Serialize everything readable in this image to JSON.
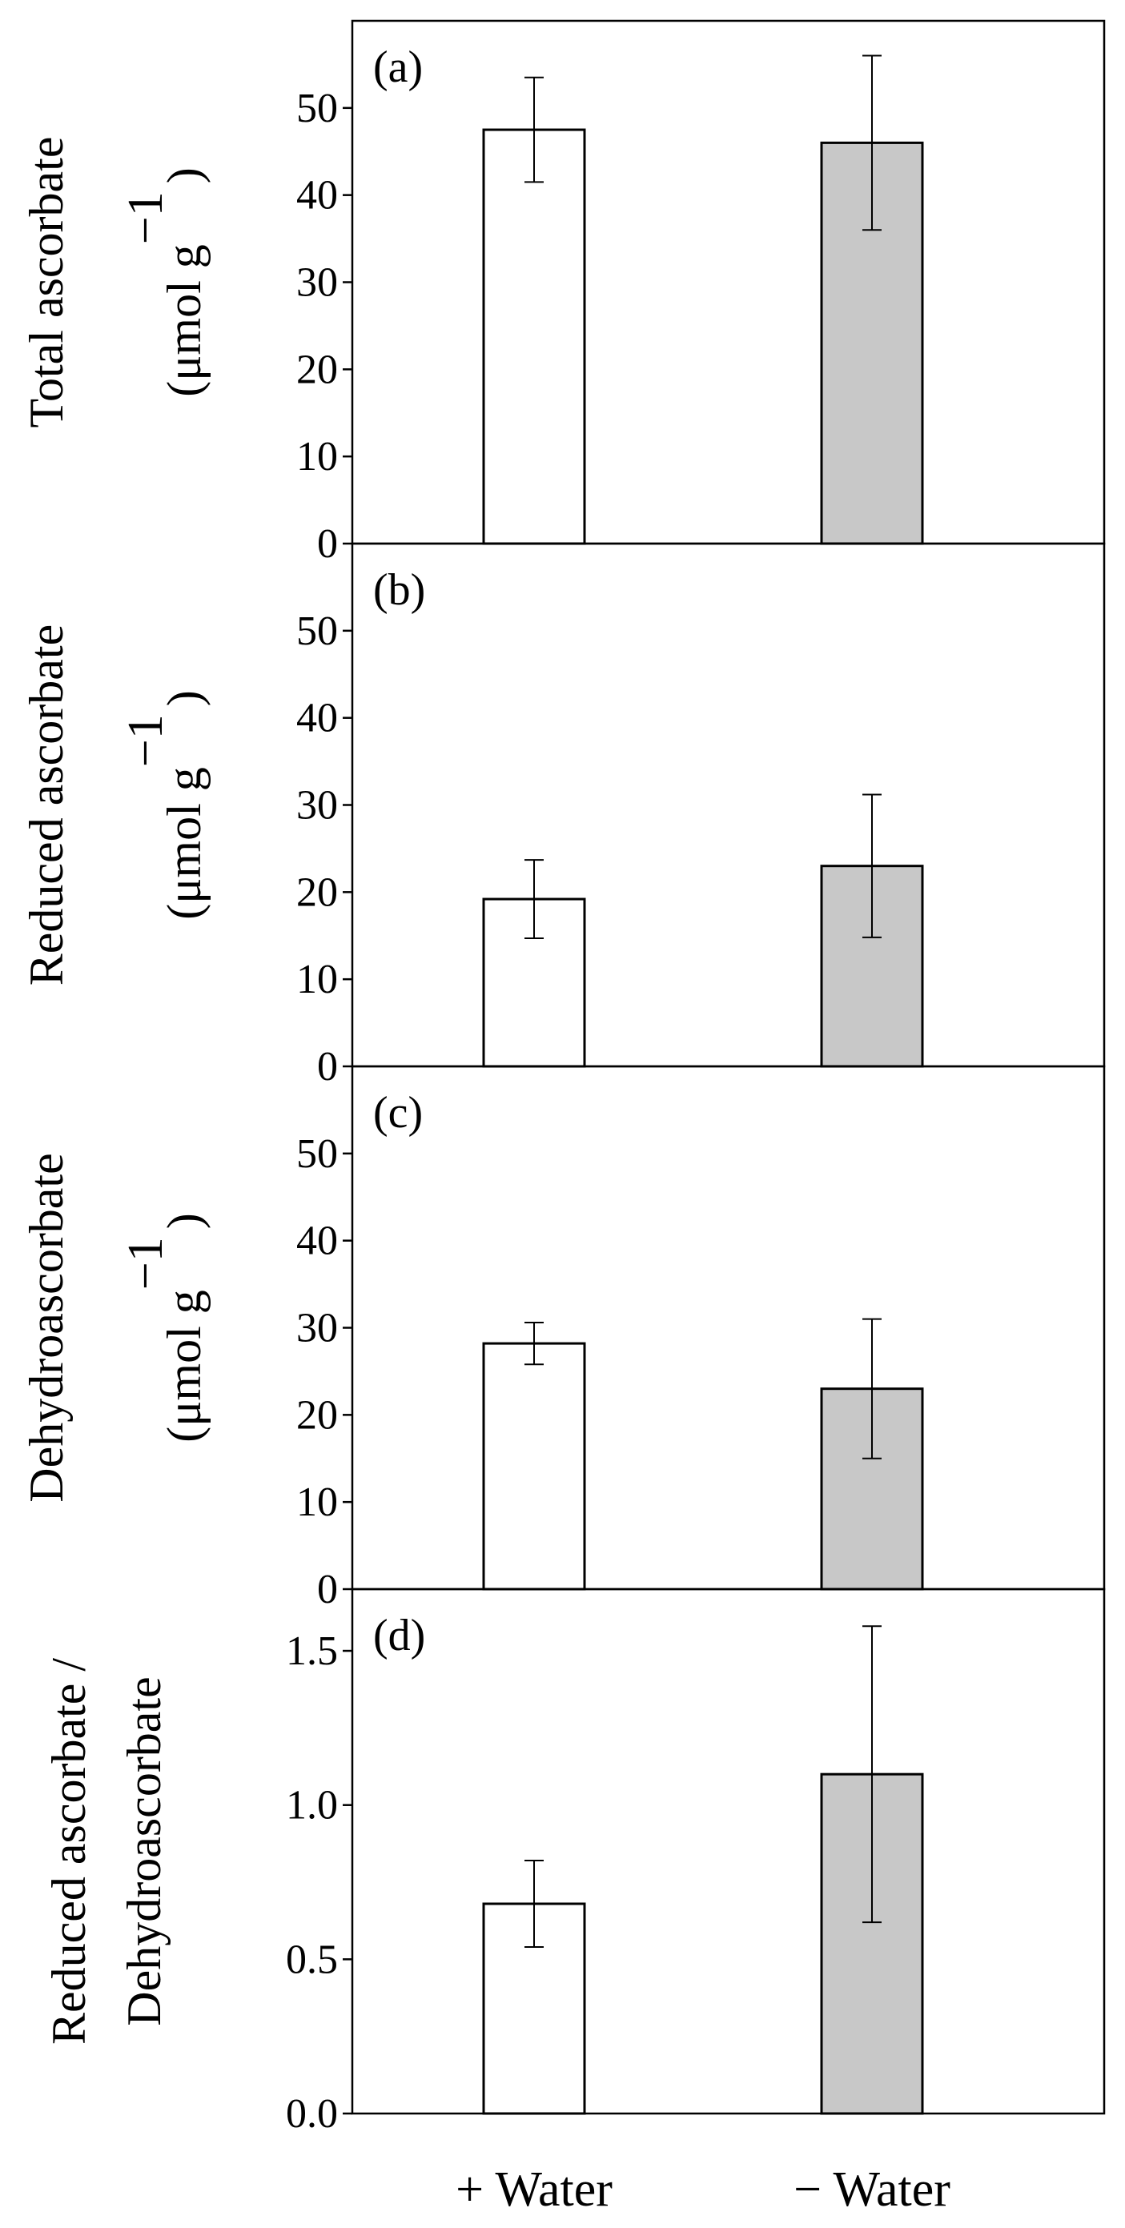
{
  "chart_data": [
    {
      "panel": "(a)",
      "type": "bar",
      "categories": [
        "+ Water",
        "− Water"
      ],
      "values": [
        47.5,
        46.0
      ],
      "errors": [
        6.0,
        10.0
      ],
      "ylabel": [
        "Total ascorbate",
        "(μmol g",
        "−1",
        ")"
      ],
      "ylim": [
        0,
        60
      ],
      "yticks": [
        0,
        10,
        20,
        30,
        40,
        50
      ],
      "ytick_labels": [
        "0",
        "10",
        "20",
        "30",
        "40",
        "50"
      ],
      "colors": [
        "#ffffff",
        "#c8c8c8"
      ]
    },
    {
      "panel": "(b)",
      "type": "bar",
      "categories": [
        "+ Water",
        "− Water"
      ],
      "values": [
        19.2,
        23.0
      ],
      "errors": [
        4.5,
        8.2
      ],
      "ylabel": [
        "Reduced ascorbate",
        "(μmol g",
        "−1",
        ")"
      ],
      "ylim": [
        0,
        60
      ],
      "yticks": [
        0,
        10,
        20,
        30,
        40,
        50
      ],
      "ytick_labels": [
        "0",
        "10",
        "20",
        "30",
        "40",
        "50"
      ],
      "colors": [
        "#ffffff",
        "#c8c8c8"
      ]
    },
    {
      "panel": "(c)",
      "type": "bar",
      "categories": [
        "+ Water",
        "− Water"
      ],
      "values": [
        28.2,
        23.0
      ],
      "errors": [
        2.4,
        8.0
      ],
      "ylabel": [
        "Dehydroascorbate",
        "(μmol g",
        "−1",
        ")"
      ],
      "ylim": [
        0,
        60
      ],
      "yticks": [
        0,
        10,
        20,
        30,
        40,
        50
      ],
      "ytick_labels": [
        "0",
        "10",
        "20",
        "30",
        "40",
        "50"
      ],
      "colors": [
        "#ffffff",
        "#c8c8c8"
      ]
    },
    {
      "panel": "(d)",
      "type": "bar",
      "categories": [
        "+ Water",
        "− Water"
      ],
      "values": [
        0.68,
        1.1
      ],
      "errors": [
        0.14,
        0.48
      ],
      "ylabel": [
        "Reduced ascorbate /",
        "Dehydroascorbate"
      ],
      "ylim": [
        0,
        1.7
      ],
      "yticks": [
        0,
        0.5,
        1.0,
        1.5
      ],
      "ytick_labels": [
        "0.0",
        "0.5",
        "1.0",
        "1.5"
      ],
      "colors": [
        "#ffffff",
        "#c8c8c8"
      ]
    }
  ],
  "x_axis": {
    "categories": [
      "+ Water",
      "− Water"
    ]
  }
}
